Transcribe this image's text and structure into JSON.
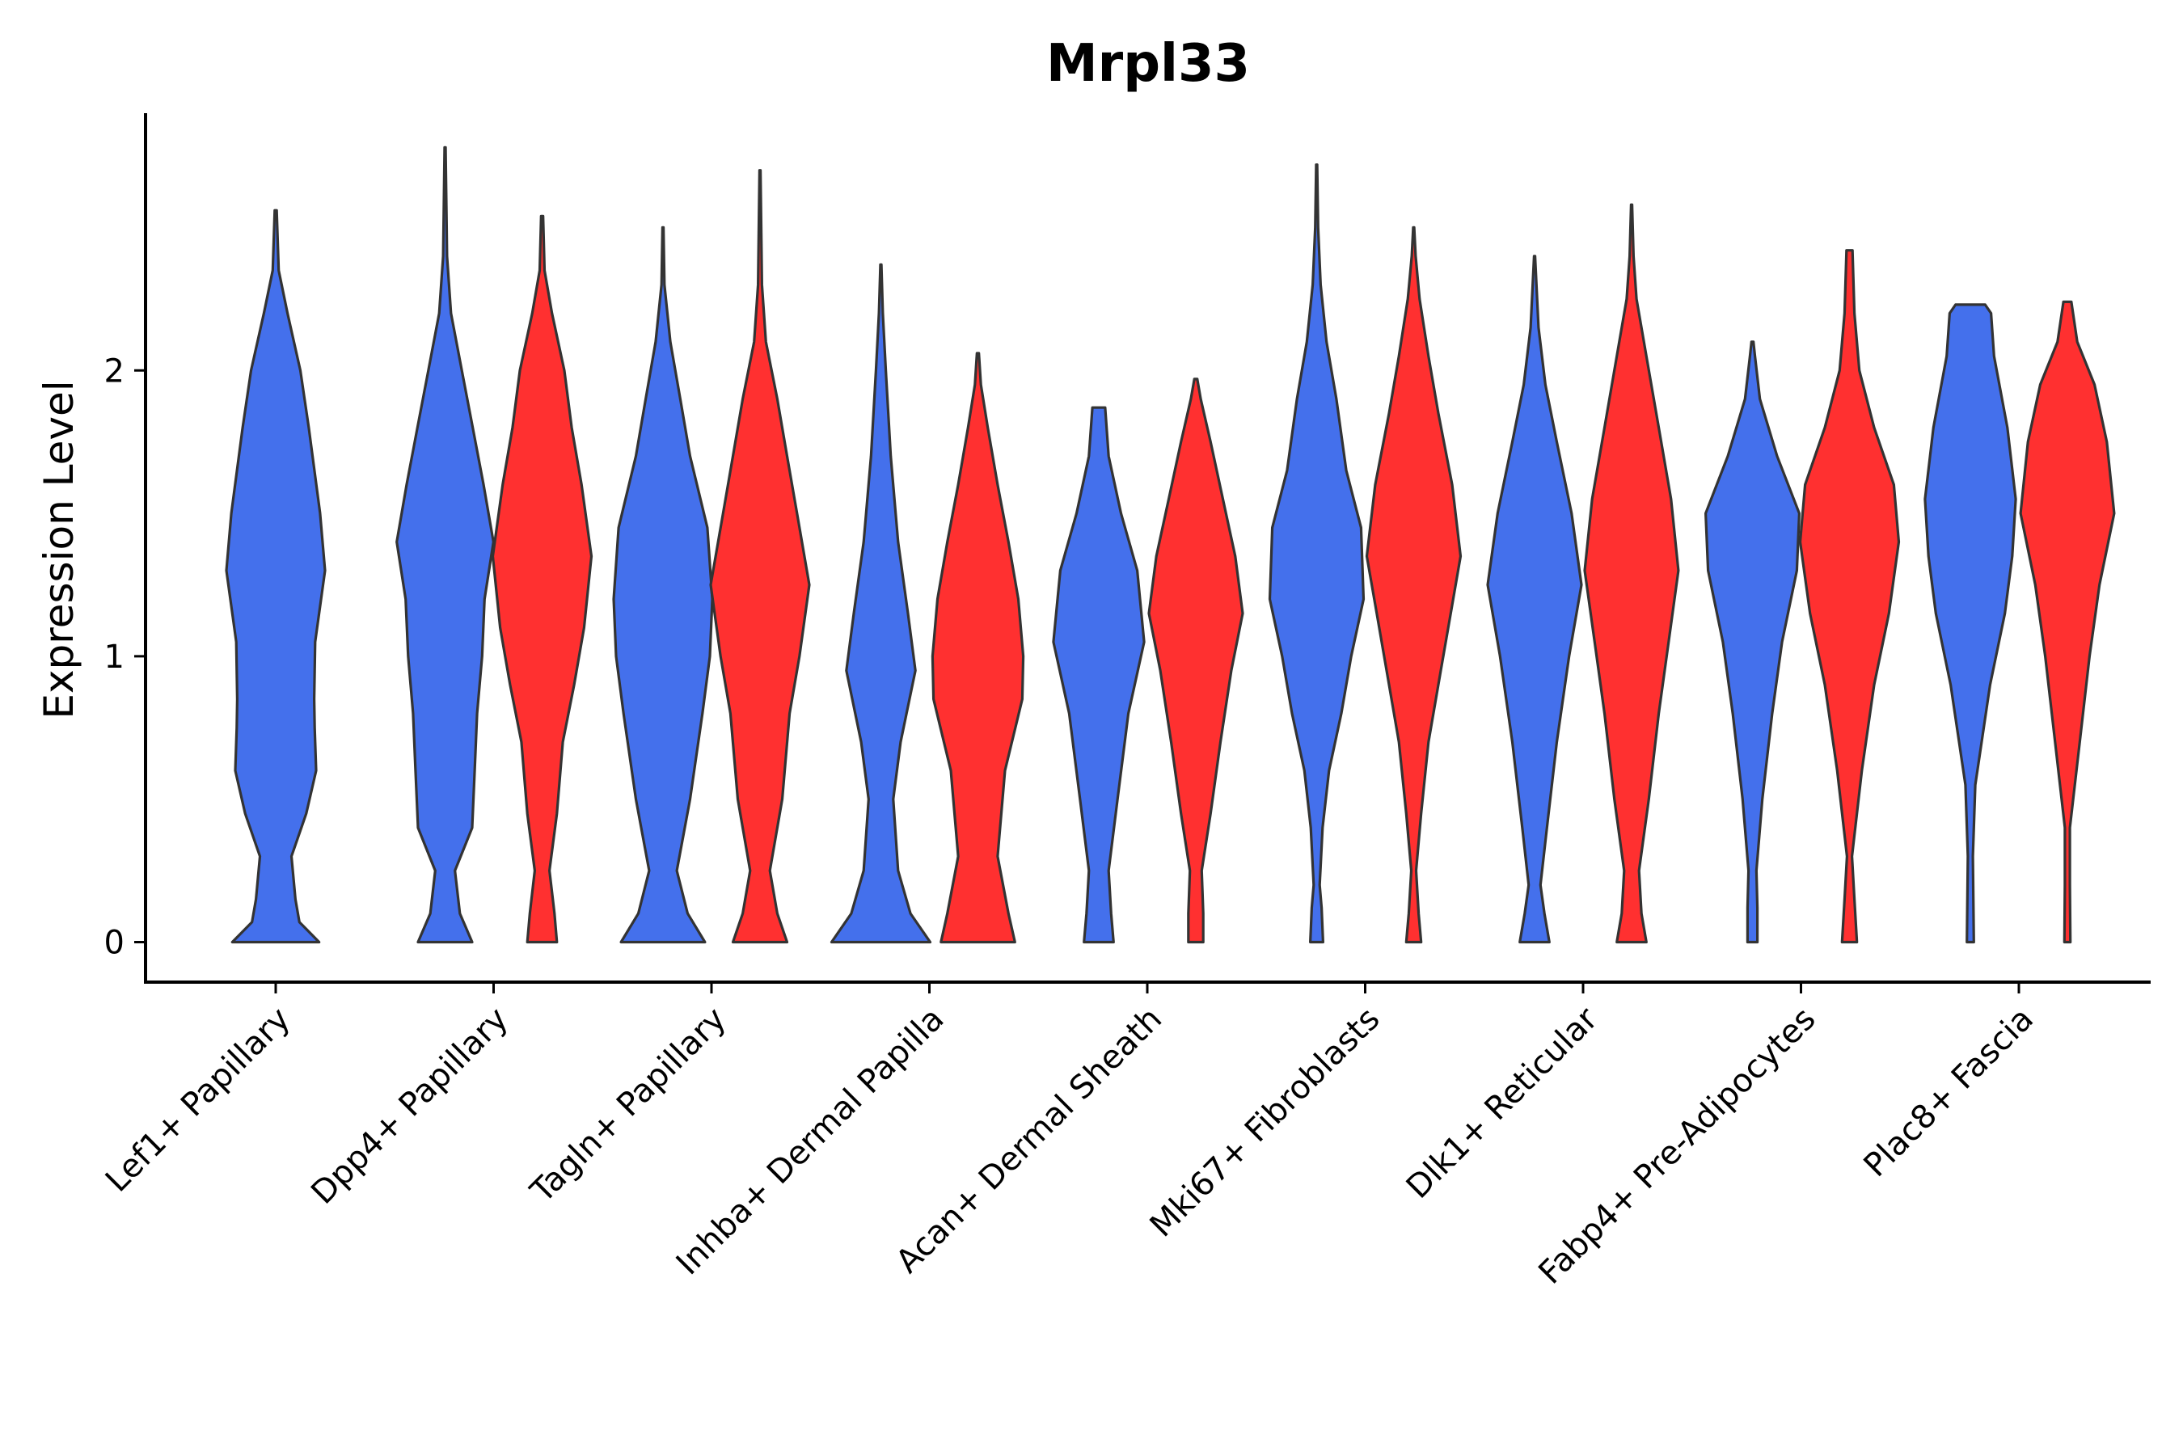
{
  "chart_data": {
    "type": "violin",
    "title": "Mrpl33",
    "xlabel": "",
    "ylabel": "Expression Level",
    "ylim": [
      -0.14,
      2.9
    ],
    "yticks": [
      0,
      1,
      2
    ],
    "ytick_labels": [
      "0",
      "1",
      "2"
    ],
    "categories": [
      "Lef1+ Papillary",
      "Dpp4+ Papillary",
      "Tagln+ Papillary",
      "Inhba+ Dermal Papilla",
      "Acan+ Dermal Sheath",
      "Mki67+ Fibroblasts",
      "Dlk1+ Reticular",
      "Fabp4+ Pre-Adipocytes",
      "Plac8+ Fascia"
    ],
    "group_colors": {
      "blue": "#4470EC",
      "red": "#FF3030"
    },
    "outline_color": "#333333",
    "violins": [
      {
        "category": "Lef1+ Papillary",
        "group": "blue",
        "max": 2.56,
        "width_profile": [
          [
            0,
            0.88
          ],
          [
            0.07,
            0.48
          ],
          [
            0.15,
            0.4
          ],
          [
            0.3,
            0.32
          ],
          [
            0.45,
            0.62
          ],
          [
            0.6,
            0.82
          ],
          [
            0.75,
            0.79
          ],
          [
            0.85,
            0.78
          ],
          [
            1.05,
            0.8
          ],
          [
            1.3,
            1.0
          ],
          [
            1.5,
            0.9
          ],
          [
            1.8,
            0.67
          ],
          [
            2.0,
            0.5
          ],
          [
            2.2,
            0.24
          ],
          [
            2.35,
            0.06
          ],
          [
            2.56,
            0.02
          ]
        ]
      },
      {
        "category": "Dpp4+ Papillary",
        "group": "blue",
        "max": 2.78,
        "width_profile": [
          [
            0,
            0.55
          ],
          [
            0.1,
            0.3
          ],
          [
            0.25,
            0.2
          ],
          [
            0.4,
            0.55
          ],
          [
            0.6,
            0.6
          ],
          [
            0.8,
            0.65
          ],
          [
            1.0,
            0.75
          ],
          [
            1.2,
            0.8
          ],
          [
            1.4,
            0.98
          ],
          [
            1.6,
            0.78
          ],
          [
            1.8,
            0.56
          ],
          [
            2.0,
            0.34
          ],
          [
            2.2,
            0.12
          ],
          [
            2.4,
            0.04
          ],
          [
            2.78,
            0.01
          ]
        ]
      },
      {
        "category": "Dpp4+ Papillary",
        "group": "red",
        "max": 2.54,
        "width_profile": [
          [
            0,
            0.3
          ],
          [
            0.1,
            0.25
          ],
          [
            0.25,
            0.15
          ],
          [
            0.45,
            0.3
          ],
          [
            0.7,
            0.42
          ],
          [
            0.9,
            0.65
          ],
          [
            1.1,
            0.85
          ],
          [
            1.35,
            1.0
          ],
          [
            1.6,
            0.8
          ],
          [
            1.8,
            0.6
          ],
          [
            2.0,
            0.45
          ],
          [
            2.2,
            0.2
          ],
          [
            2.35,
            0.05
          ],
          [
            2.54,
            0.02
          ]
        ]
      },
      {
        "category": "Tagln+ Papillary",
        "group": "blue",
        "max": 2.5,
        "width_profile": [
          [
            0,
            0.85
          ],
          [
            0.1,
            0.5
          ],
          [
            0.25,
            0.28
          ],
          [
            0.5,
            0.55
          ],
          [
            0.8,
            0.8
          ],
          [
            1.0,
            0.95
          ],
          [
            1.2,
            1.0
          ],
          [
            1.45,
            0.9
          ],
          [
            1.7,
            0.55
          ],
          [
            1.9,
            0.35
          ],
          [
            2.1,
            0.15
          ],
          [
            2.3,
            0.03
          ],
          [
            2.5,
            0.01
          ]
        ]
      },
      {
        "category": "Tagln+ Papillary",
        "group": "red",
        "max": 2.7,
        "width_profile": [
          [
            0,
            0.55
          ],
          [
            0.1,
            0.35
          ],
          [
            0.25,
            0.2
          ],
          [
            0.5,
            0.45
          ],
          [
            0.8,
            0.6
          ],
          [
            1.0,
            0.8
          ],
          [
            1.25,
            1.0
          ],
          [
            1.5,
            0.75
          ],
          [
            1.7,
            0.55
          ],
          [
            1.9,
            0.35
          ],
          [
            2.1,
            0.12
          ],
          [
            2.3,
            0.04
          ],
          [
            2.7,
            0.01
          ]
        ]
      },
      {
        "category": "Inhba+ Dermal Papilla",
        "group": "blue",
        "max": 2.37,
        "width_profile": [
          [
            0,
            1.0
          ],
          [
            0.1,
            0.6
          ],
          [
            0.25,
            0.35
          ],
          [
            0.5,
            0.25
          ],
          [
            0.7,
            0.4
          ],
          [
            0.95,
            0.7
          ],
          [
            1.15,
            0.55
          ],
          [
            1.4,
            0.35
          ],
          [
            1.7,
            0.2
          ],
          [
            2.0,
            0.1
          ],
          [
            2.2,
            0.04
          ],
          [
            2.37,
            0.01
          ]
        ]
      },
      {
        "category": "Inhba+ Dermal Papilla",
        "group": "red",
        "max": 2.06,
        "width_profile": [
          [
            0,
            0.75
          ],
          [
            0.1,
            0.62
          ],
          [
            0.3,
            0.4
          ],
          [
            0.6,
            0.55
          ],
          [
            0.85,
            0.9
          ],
          [
            1.0,
            0.92
          ],
          [
            1.2,
            0.82
          ],
          [
            1.4,
            0.62
          ],
          [
            1.6,
            0.4
          ],
          [
            1.8,
            0.2
          ],
          [
            1.95,
            0.06
          ],
          [
            2.06,
            0.02
          ]
        ]
      },
      {
        "category": "Acan+ Dermal Sheath",
        "group": "blue",
        "max": 1.87,
        "width_profile": [
          [
            0,
            0.3
          ],
          [
            0.1,
            0.25
          ],
          [
            0.25,
            0.2
          ],
          [
            0.5,
            0.38
          ],
          [
            0.8,
            0.6
          ],
          [
            1.05,
            0.92
          ],
          [
            1.3,
            0.78
          ],
          [
            1.5,
            0.45
          ],
          [
            1.7,
            0.2
          ],
          [
            1.87,
            0.13
          ]
        ]
      },
      {
        "category": "Acan+ Dermal Sheath",
        "group": "red",
        "max": 1.97,
        "width_profile": [
          [
            0,
            0.15
          ],
          [
            0.1,
            0.15
          ],
          [
            0.25,
            0.12
          ],
          [
            0.45,
            0.3
          ],
          [
            0.7,
            0.5
          ],
          [
            0.95,
            0.72
          ],
          [
            1.15,
            0.95
          ],
          [
            1.35,
            0.8
          ],
          [
            1.55,
            0.55
          ],
          [
            1.75,
            0.3
          ],
          [
            1.9,
            0.1
          ],
          [
            1.97,
            0.03
          ]
        ]
      },
      {
        "category": "Mki67+ Fibroblasts",
        "group": "blue",
        "max": 2.72,
        "width_profile": [
          [
            0,
            0.13
          ],
          [
            0.12,
            0.1
          ],
          [
            0.2,
            0.06
          ],
          [
            0.4,
            0.12
          ],
          [
            0.6,
            0.25
          ],
          [
            0.8,
            0.5
          ],
          [
            1.0,
            0.7
          ],
          [
            1.2,
            0.95
          ],
          [
            1.45,
            0.9
          ],
          [
            1.65,
            0.6
          ],
          [
            1.9,
            0.4
          ],
          [
            2.1,
            0.2
          ],
          [
            2.3,
            0.08
          ],
          [
            2.5,
            0.03
          ],
          [
            2.72,
            0.01
          ]
        ]
      },
      {
        "category": "Mki67+ Fibroblasts",
        "group": "red",
        "max": 2.5,
        "width_profile": [
          [
            0,
            0.15
          ],
          [
            0.1,
            0.1
          ],
          [
            0.25,
            0.05
          ],
          [
            0.45,
            0.15
          ],
          [
            0.7,
            0.3
          ],
          [
            0.95,
            0.55
          ],
          [
            1.15,
            0.75
          ],
          [
            1.35,
            0.95
          ],
          [
            1.6,
            0.78
          ],
          [
            1.85,
            0.5
          ],
          [
            2.05,
            0.3
          ],
          [
            2.25,
            0.12
          ],
          [
            2.4,
            0.04
          ],
          [
            2.5,
            0.01
          ]
        ]
      },
      {
        "category": "Dlk1+ Reticular",
        "group": "blue",
        "max": 2.4,
        "width_profile": [
          [
            0,
            0.3
          ],
          [
            0.1,
            0.2
          ],
          [
            0.2,
            0.12
          ],
          [
            0.4,
            0.25
          ],
          [
            0.7,
            0.45
          ],
          [
            1.0,
            0.7
          ],
          [
            1.25,
            0.95
          ],
          [
            1.5,
            0.75
          ],
          [
            1.75,
            0.45
          ],
          [
            1.95,
            0.22
          ],
          [
            2.15,
            0.08
          ],
          [
            2.4,
            0.01
          ]
        ]
      },
      {
        "category": "Dlk1+ Reticular",
        "group": "red",
        "max": 2.58,
        "width_profile": [
          [
            0,
            0.3
          ],
          [
            0.1,
            0.2
          ],
          [
            0.25,
            0.15
          ],
          [
            0.5,
            0.35
          ],
          [
            0.8,
            0.55
          ],
          [
            1.05,
            0.75
          ],
          [
            1.3,
            0.95
          ],
          [
            1.55,
            0.8
          ],
          [
            1.8,
            0.55
          ],
          [
            2.05,
            0.3
          ],
          [
            2.25,
            0.1
          ],
          [
            2.4,
            0.04
          ],
          [
            2.58,
            0.01
          ]
        ]
      },
      {
        "category": "Fabp4+ Pre-Adipocytes",
        "group": "blue",
        "max": 2.1,
        "width_profile": [
          [
            0,
            0.1
          ],
          [
            0.12,
            0.1
          ],
          [
            0.25,
            0.08
          ],
          [
            0.5,
            0.2
          ],
          [
            0.8,
            0.4
          ],
          [
            1.05,
            0.6
          ],
          [
            1.3,
            0.9
          ],
          [
            1.5,
            0.95
          ],
          [
            1.7,
            0.5
          ],
          [
            1.9,
            0.15
          ],
          [
            2.05,
            0.05
          ],
          [
            2.1,
            0.02
          ]
        ]
      },
      {
        "category": "Fabp4+ Pre-Adipocytes",
        "group": "red",
        "max": 2.42,
        "width_profile": [
          [
            0,
            0.15
          ],
          [
            0.15,
            0.1
          ],
          [
            0.3,
            0.05
          ],
          [
            0.6,
            0.25
          ],
          [
            0.9,
            0.5
          ],
          [
            1.15,
            0.8
          ],
          [
            1.4,
            1.0
          ],
          [
            1.6,
            0.9
          ],
          [
            1.8,
            0.5
          ],
          [
            2.0,
            0.2
          ],
          [
            2.2,
            0.1
          ],
          [
            2.42,
            0.06
          ]
        ]
      },
      {
        "category": "Plac8+ Fascia",
        "group": "blue",
        "max": 2.23,
        "width_profile": [
          [
            0,
            0.07
          ],
          [
            0.3,
            0.05
          ],
          [
            0.55,
            0.1
          ],
          [
            0.9,
            0.4
          ],
          [
            1.15,
            0.7
          ],
          [
            1.35,
            0.85
          ],
          [
            1.55,
            0.92
          ],
          [
            1.8,
            0.75
          ],
          [
            2.05,
            0.48
          ],
          [
            2.2,
            0.42
          ],
          [
            2.23,
            0.3
          ]
        ]
      },
      {
        "category": "Plac8+ Fascia",
        "group": "red",
        "max": 2.24,
        "width_profile": [
          [
            0,
            0.06
          ],
          [
            0.2,
            0.05
          ],
          [
            0.4,
            0.05
          ],
          [
            0.7,
            0.25
          ],
          [
            1.0,
            0.45
          ],
          [
            1.25,
            0.65
          ],
          [
            1.5,
            0.95
          ],
          [
            1.75,
            0.8
          ],
          [
            1.95,
            0.55
          ],
          [
            2.1,
            0.2
          ],
          [
            2.24,
            0.08
          ]
        ]
      }
    ]
  }
}
